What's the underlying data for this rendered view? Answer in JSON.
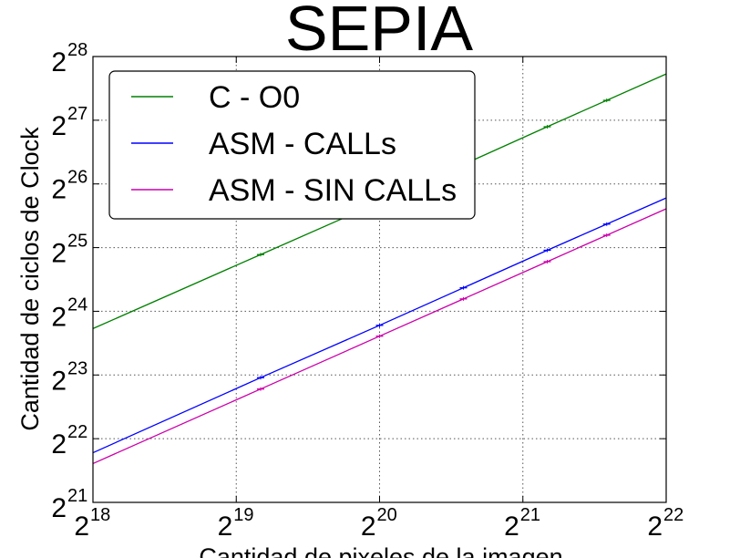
{
  "chart_data": {
    "type": "line",
    "title": "SEPIA",
    "xlabel": "Cantidad de pixeles de la imagen",
    "ylabel": "Cantidad de ciclos de Clock",
    "xscale": "log2",
    "yscale": "log2",
    "xlim": [
      262144,
      4194304
    ],
    "ylim": [
      2097152,
      268435456
    ],
    "x_ticks": [
      {
        "base": "2",
        "exp": "18"
      },
      {
        "base": "2",
        "exp": "19"
      },
      {
        "base": "2",
        "exp": "20"
      },
      {
        "base": "2",
        "exp": "21"
      },
      {
        "base": "2",
        "exp": "22"
      }
    ],
    "y_ticks": [
      {
        "base": "2",
        "exp": "21"
      },
      {
        "base": "2",
        "exp": "22"
      },
      {
        "base": "2",
        "exp": "23"
      },
      {
        "base": "2",
        "exp": "24"
      },
      {
        "base": "2",
        "exp": "25"
      },
      {
        "base": "2",
        "exp": "26"
      },
      {
        "base": "2",
        "exp": "27"
      },
      {
        "base": "2",
        "exp": "28"
      }
    ],
    "grid": true,
    "legend_position": "top-left",
    "series": [
      {
        "name": "C - O0",
        "color": "#008000",
        "x": [
          262144,
          589824,
          1048576,
          2359296,
          4194304
        ],
        "y": [
          13900000,
          31100000,
          55000000,
          125000000,
          222000000
        ]
      },
      {
        "name": "ASM - CALLs",
        "color": "#0000ff",
        "x": [
          262144,
          589824,
          1048576,
          2359296,
          4194304
        ],
        "y": [
          3600000,
          8150000,
          14400000,
          32600000,
          57600000
        ]
      },
      {
        "name": "ASM - SIN CALLs",
        "color": "#cc00aa",
        "x": [
          262144,
          589824,
          1048576,
          2359296,
          4194304
        ],
        "y": [
          3200000,
          7200000,
          12800000,
          28800000,
          51200000
        ]
      }
    ],
    "error_bar_x": [
      589824,
      1048576,
      1572864,
      2359296,
      3145728
    ]
  }
}
